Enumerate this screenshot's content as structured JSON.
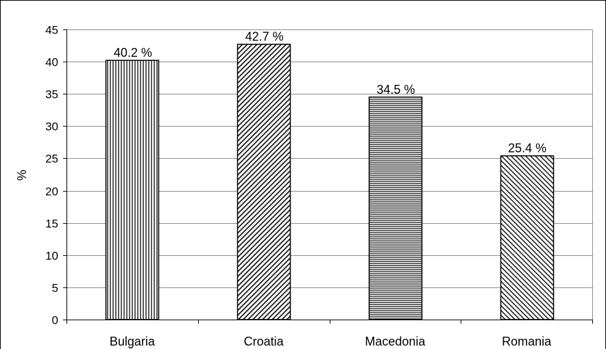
{
  "chart_data": {
    "type": "bar",
    "categories": [
      "Bulgaria",
      "Croatia",
      "Macedonia",
      "Romania"
    ],
    "values": [
      40.2,
      42.7,
      34.5,
      25.4
    ],
    "data_labels": [
      "40.2 %",
      "42.7 %",
      "34.5 %",
      "25.4 %"
    ],
    "patterns": [
      "vertical-lines",
      "diagonal-lines-up",
      "horizontal-lines",
      "diagonal-lines-down"
    ],
    "ylabel": "%",
    "ylim": [
      0,
      45
    ],
    "yticks": [
      0,
      5,
      10,
      15,
      20,
      25,
      30,
      35,
      40,
      45
    ],
    "grid": true,
    "legend": "none"
  }
}
